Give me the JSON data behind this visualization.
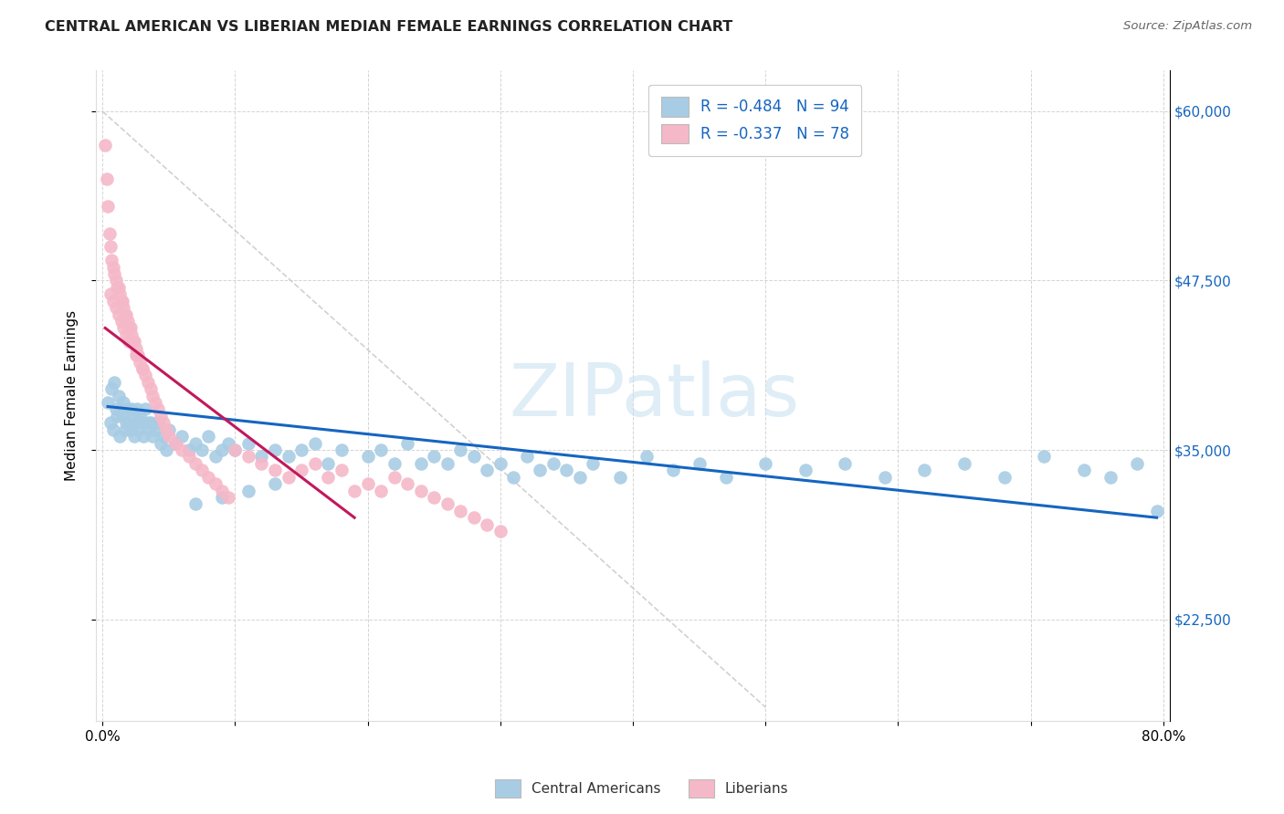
{
  "title": "CENTRAL AMERICAN VS LIBERIAN MEDIAN FEMALE EARNINGS CORRELATION CHART",
  "source": "Source: ZipAtlas.com",
  "ylabel": "Median Female Earnings",
  "xlim": [
    -0.005,
    0.805
  ],
  "ylim": [
    15000,
    63000
  ],
  "yticks": [
    22500,
    35000,
    47500,
    60000
  ],
  "ytick_labels": [
    "$22,500",
    "$35,000",
    "$47,500",
    "$60,000"
  ],
  "xticks": [
    0.0,
    0.1,
    0.2,
    0.3,
    0.4,
    0.5,
    0.6,
    0.7,
    0.8
  ],
  "xtick_labels": [
    "0.0%",
    "",
    "",
    "",
    "",
    "",
    "",
    "",
    "80.0%"
  ],
  "legend1_label": "R = -0.484   N = 94",
  "legend2_label": "R = -0.337   N = 78",
  "legend_bottom_label1": "Central Americans",
  "legend_bottom_label2": "Liberians",
  "blue_color": "#a8cce4",
  "pink_color": "#f5b8c8",
  "blue_line_color": "#1565c0",
  "pink_line_color": "#c2185b",
  "dashed_line_color": "#cccccc",
  "watermark_color": "#c5dff0",
  "ca_x": [
    0.004,
    0.006,
    0.007,
    0.008,
    0.009,
    0.01,
    0.011,
    0.012,
    0.013,
    0.014,
    0.015,
    0.016,
    0.017,
    0.018,
    0.019,
    0.02,
    0.021,
    0.022,
    0.023,
    0.024,
    0.025,
    0.026,
    0.027,
    0.028,
    0.03,
    0.031,
    0.032,
    0.034,
    0.035,
    0.036,
    0.038,
    0.04,
    0.042,
    0.044,
    0.046,
    0.048,
    0.05,
    0.055,
    0.06,
    0.065,
    0.07,
    0.075,
    0.08,
    0.085,
    0.09,
    0.095,
    0.1,
    0.11,
    0.12,
    0.13,
    0.14,
    0.15,
    0.16,
    0.17,
    0.18,
    0.2,
    0.21,
    0.22,
    0.23,
    0.24,
    0.25,
    0.26,
    0.27,
    0.28,
    0.29,
    0.3,
    0.31,
    0.32,
    0.33,
    0.34,
    0.35,
    0.36,
    0.37,
    0.39,
    0.41,
    0.43,
    0.45,
    0.47,
    0.5,
    0.53,
    0.56,
    0.59,
    0.62,
    0.65,
    0.68,
    0.71,
    0.74,
    0.76,
    0.78,
    0.795,
    0.07,
    0.09,
    0.11,
    0.13
  ],
  "ca_y": [
    38500,
    37000,
    39500,
    36500,
    40000,
    38000,
    37500,
    39000,
    36000,
    38000,
    37500,
    38500,
    36500,
    37000,
    38000,
    37000,
    36500,
    38000,
    37500,
    36000,
    37000,
    38000,
    36500,
    37500,
    37000,
    36000,
    38000,
    37000,
    36500,
    37000,
    36000,
    36500,
    37000,
    35500,
    36000,
    35000,
    36500,
    35500,
    36000,
    35000,
    35500,
    35000,
    36000,
    34500,
    35000,
    35500,
    35000,
    35500,
    34500,
    35000,
    34500,
    35000,
    35500,
    34000,
    35000,
    34500,
    35000,
    34000,
    35500,
    34000,
    34500,
    34000,
    35000,
    34500,
    33500,
    34000,
    33000,
    34500,
    33500,
    34000,
    33500,
    33000,
    34000,
    33000,
    34500,
    33500,
    34000,
    33000,
    34000,
    33500,
    34000,
    33000,
    33500,
    34000,
    33000,
    34500,
    33500,
    33000,
    34000,
    30500,
    31000,
    31500,
    32000,
    32500
  ],
  "lib_x": [
    0.002,
    0.003,
    0.004,
    0.005,
    0.006,
    0.007,
    0.008,
    0.009,
    0.01,
    0.011,
    0.012,
    0.013,
    0.014,
    0.015,
    0.016,
    0.017,
    0.018,
    0.019,
    0.02,
    0.021,
    0.022,
    0.023,
    0.024,
    0.025,
    0.026,
    0.027,
    0.028,
    0.03,
    0.032,
    0.034,
    0.036,
    0.038,
    0.04,
    0.042,
    0.044,
    0.046,
    0.048,
    0.05,
    0.055,
    0.06,
    0.065,
    0.07,
    0.075,
    0.08,
    0.085,
    0.09,
    0.095,
    0.1,
    0.11,
    0.12,
    0.13,
    0.14,
    0.15,
    0.16,
    0.17,
    0.18,
    0.19,
    0.2,
    0.21,
    0.22,
    0.23,
    0.24,
    0.25,
    0.26,
    0.27,
    0.28,
    0.29,
    0.3,
    0.006,
    0.008,
    0.01,
    0.012,
    0.014,
    0.016,
    0.018,
    0.02,
    0.025,
    0.03
  ],
  "lib_y": [
    57500,
    55000,
    53000,
    51000,
    50000,
    49000,
    48500,
    48000,
    47500,
    47000,
    47000,
    46500,
    46000,
    46000,
    45500,
    45000,
    45000,
    44500,
    44000,
    44000,
    43500,
    43000,
    43000,
    42500,
    42000,
    42000,
    41500,
    41000,
    40500,
    40000,
    39500,
    39000,
    38500,
    38000,
    37500,
    37000,
    36500,
    36000,
    35500,
    35000,
    34500,
    34000,
    33500,
    33000,
    32500,
    32000,
    31500,
    35000,
    34500,
    34000,
    33500,
    33000,
    33500,
    34000,
    33000,
    33500,
    32000,
    32500,
    32000,
    33000,
    32500,
    32000,
    31500,
    31000,
    30500,
    30000,
    29500,
    29000,
    46500,
    46000,
    45500,
    45000,
    44500,
    44000,
    43500,
    43000,
    42000,
    41000
  ],
  "ca_line_x": [
    0.004,
    0.795
  ],
  "ca_line_y": [
    38200,
    30000
  ],
  "lib_line_x": [
    0.002,
    0.19
  ],
  "lib_line_y": [
    44000,
    30000
  ],
  "dash_line_x": [
    0.0,
    0.5
  ],
  "dash_line_y": [
    60000,
    16000
  ]
}
